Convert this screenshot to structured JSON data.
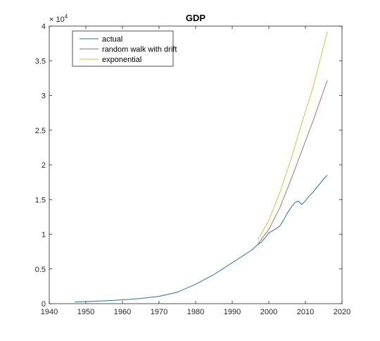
{
  "chart_data": {
    "type": "line",
    "title": "GDP",
    "xlabel": "",
    "ylabel": "",
    "xlim": [
      1940,
      2020
    ],
    "ylim": [
      0,
      4
    ],
    "y_multiplier_label": {
      "base": "× 10",
      "exponent": "4"
    },
    "xticks": [
      "1940",
      "1950",
      "1960",
      "1970",
      "1980",
      "1990",
      "2000",
      "2010",
      "2020"
    ],
    "yticks": [
      "0",
      "0.5",
      "1",
      "1.5",
      "2",
      "2.5",
      "3",
      "3.5",
      "4"
    ],
    "grid": false,
    "legend_position": "top-left",
    "series": [
      {
        "name": "actual",
        "color": "#2e6f8e",
        "x": [
          1947,
          1950,
          1955,
          1960,
          1965,
          1970,
          1975,
          1980,
          1985,
          1990,
          1995,
          1997,
          1998,
          1999,
          2000,
          2001,
          2002,
          2003,
          2004,
          2005,
          2006,
          2007,
          2008,
          2009,
          2010,
          2011,
          2012,
          2013,
          2014,
          2015,
          2016
        ],
        "y": [
          0.025,
          0.03,
          0.04,
          0.055,
          0.075,
          0.105,
          0.165,
          0.28,
          0.42,
          0.59,
          0.76,
          0.85,
          0.89,
          0.95,
          1.02,
          1.05,
          1.08,
          1.12,
          1.2,
          1.3,
          1.38,
          1.45,
          1.48,
          1.43,
          1.48,
          1.55,
          1.6,
          1.67,
          1.73,
          1.8,
          1.85
        ]
      },
      {
        "name": "random walk with drift",
        "color": "#a6766e",
        "x": [
          1997,
          2000,
          2003,
          2006,
          2009,
          2012,
          2016
        ],
        "y": [
          0.86,
          1.07,
          1.38,
          1.78,
          2.2,
          2.62,
          3.22
        ]
      },
      {
        "name": "exponential",
        "color": "#c8c84a",
        "x": [
          1997,
          2000,
          2003,
          2006,
          2009,
          2012,
          2016
        ],
        "y": [
          0.92,
          1.2,
          1.6,
          2.07,
          2.6,
          3.1,
          3.92
        ]
      }
    ]
  }
}
